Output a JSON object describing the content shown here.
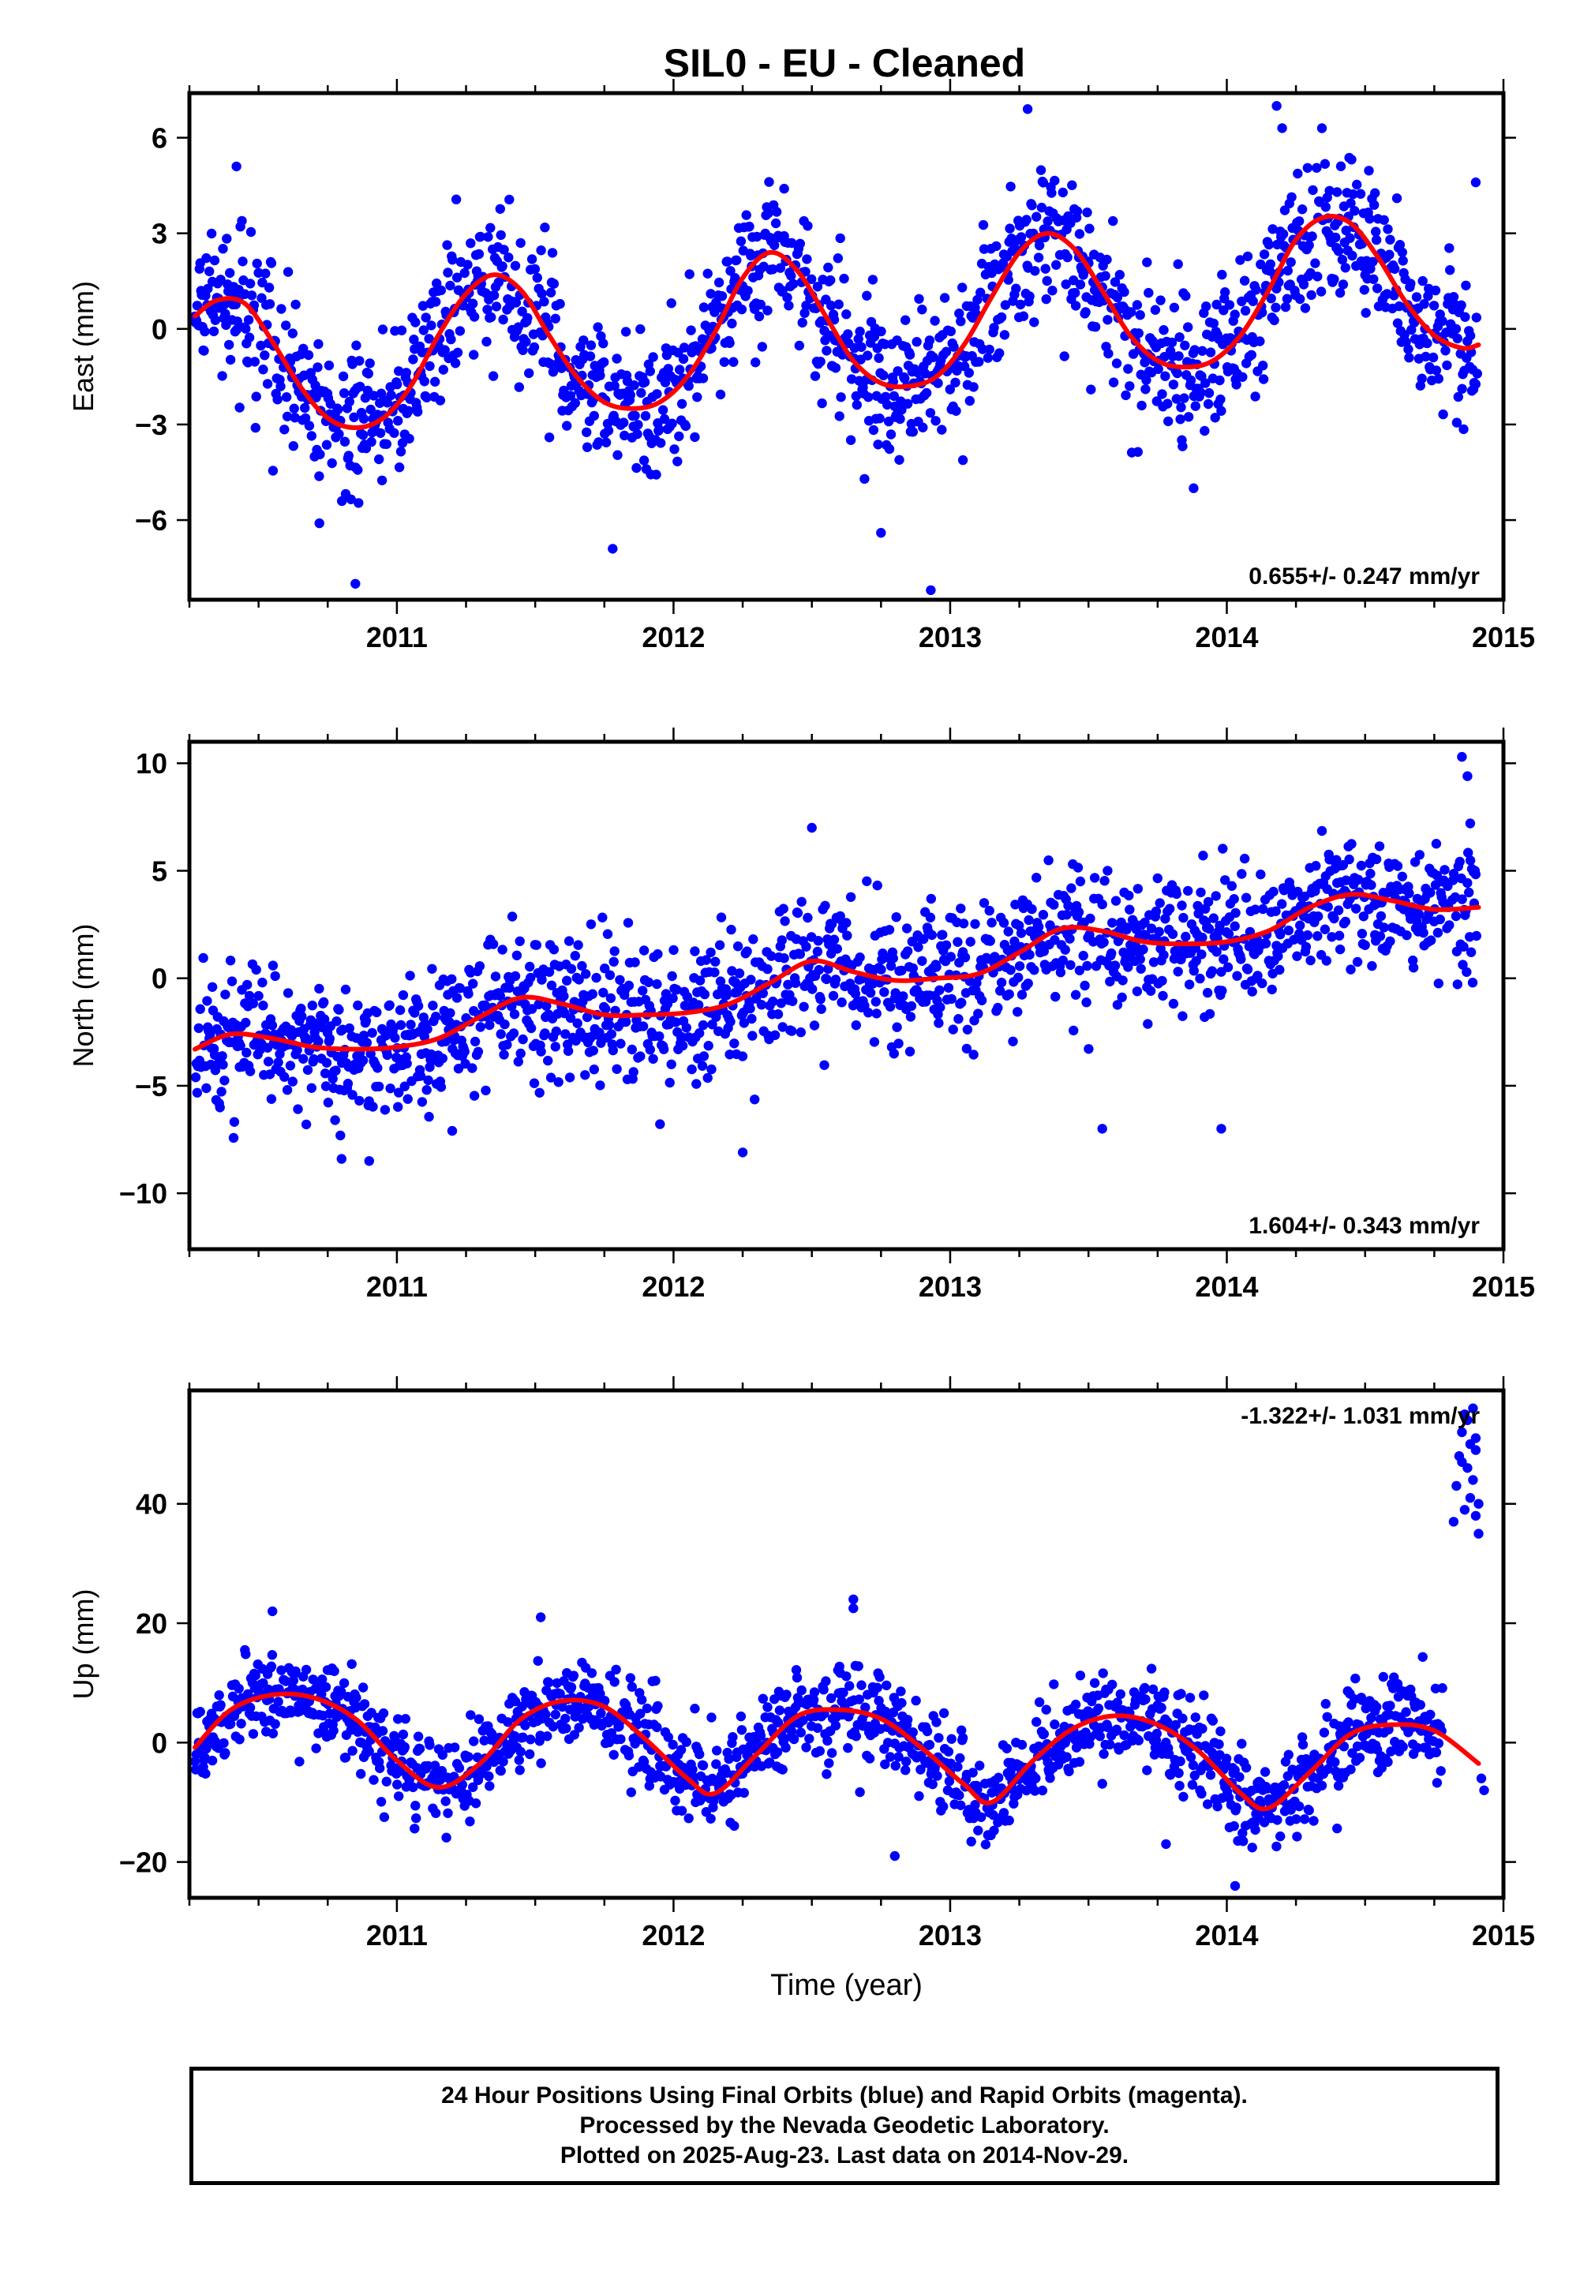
{
  "page": {
    "title": "SIL0  - EU - Cleaned",
    "footer": [
      "24 Hour Positions Using Final Orbits (blue) and Rapid Orbits (magenta).",
      "Processed by the Nevada Geodetic Laboratory.",
      "Plotted on 2025-Aug-23. Last data on 2014-Nov-29."
    ]
  },
  "colors": {
    "points": "#0000ff",
    "fit": "#ff0000",
    "frame": "#000000"
  },
  "chart_data": [
    {
      "type": "scatter",
      "title": "SIL0  - EU - Cleaned",
      "ylabel": "East (mm)",
      "xlabel": "",
      "xlim": [
        2010.25,
        2015.0
      ],
      "ylim": [
        -8.5,
        7.4
      ],
      "xticks": [
        2011,
        2012,
        2013,
        2014,
        2015
      ],
      "yticks": [
        -6,
        -3,
        0,
        3,
        6
      ],
      "ytick_labels": [
        "−6",
        "−3",
        "0",
        "3",
        "6"
      ],
      "rate_label": "0.655+/- 0.247 mm/yr",
      "rate_position": "bottom-right",
      "x_range": [
        2010.27,
        2014.91
      ],
      "seasonal": {
        "trend": 0.655,
        "amplitude": 2.5,
        "peak": 0.37
      },
      "noise": 1.15,
      "fit_line": {
        "x": [
          2010.27,
          2010.35,
          2010.45,
          2010.55,
          2010.65,
          2010.75,
          2010.85,
          2010.95,
          2011.05,
          2011.15,
          2011.25,
          2011.35,
          2011.45,
          2011.55,
          2011.65,
          2011.75,
          2011.85,
          2011.95,
          2012.05,
          2012.15,
          2012.25,
          2012.35,
          2012.45,
          2012.55,
          2012.65,
          2012.75,
          2012.85,
          2012.95,
          2013.05,
          2013.15,
          2013.25,
          2013.35,
          2013.45,
          2013.55,
          2013.65,
          2013.75,
          2013.85,
          2013.95,
          2014.05,
          2014.15,
          2014.25,
          2014.35,
          2014.45,
          2014.55,
          2014.65,
          2014.75,
          2014.85,
          2014.91
        ],
        "y": [
          0.4,
          0.9,
          0.8,
          -0.4,
          -1.8,
          -2.8,
          -3.1,
          -2.8,
          -1.8,
          -0.2,
          1.1,
          1.7,
          1.2,
          -0.2,
          -1.5,
          -2.3,
          -2.5,
          -2.3,
          -1.5,
          -0.1,
          1.6,
          2.4,
          1.8,
          0.4,
          -1.0,
          -1.7,
          -1.8,
          -1.5,
          -0.5,
          1.0,
          2.4,
          3.0,
          2.5,
          1.2,
          -0.2,
          -1.0,
          -1.2,
          -1.0,
          -0.2,
          1.2,
          2.8,
          3.5,
          3.3,
          2.2,
          0.8,
          -0.2,
          -0.6,
          -0.5
        ]
      },
      "outliers": {
        "x": [
          2010.42,
          2012.4,
          2013.28,
          2014.18,
          2014.2,
          2010.72,
          2010.85,
          2011.78,
          2012.75,
          2012.93,
          2013.88,
          2014.9
        ],
        "y": [
          5.1,
          4.4,
          6.9,
          7.0,
          6.3,
          -6.1,
          -8.0,
          -6.9,
          -6.4,
          -8.2,
          -5.0,
          4.6
        ]
      }
    },
    {
      "type": "scatter",
      "ylabel": "North (mm)",
      "xlabel": "",
      "xlim": [
        2010.25,
        2015.0
      ],
      "ylim": [
        -12.6,
        11.0
      ],
      "xticks": [
        2011,
        2012,
        2013,
        2014,
        2015
      ],
      "yticks": [
        -10,
        -5,
        0,
        5,
        10
      ],
      "ytick_labels": [
        "−10",
        "−5",
        "0",
        "5",
        "10"
      ],
      "rate_label": "1.604+/- 0.343 mm/yr",
      "rate_position": "bottom-right",
      "x_range": [
        2010.27,
        2014.91
      ],
      "seasonal": {
        "trend": 1.604,
        "amplitude": 0.6,
        "peak": 0.45
      },
      "noise": 1.6,
      "fit_line": {
        "x": [
          2010.27,
          2010.4,
          2010.55,
          2010.7,
          2010.85,
          2011.0,
          2011.15,
          2011.3,
          2011.45,
          2011.6,
          2011.75,
          2011.9,
          2012.05,
          2012.2,
          2012.35,
          2012.5,
          2012.65,
          2012.8,
          2012.95,
          2013.1,
          2013.25,
          2013.4,
          2013.55,
          2013.7,
          2013.85,
          2014.0,
          2014.15,
          2014.3,
          2014.45,
          2014.6,
          2014.75,
          2014.91
        ],
        "y": [
          -3.3,
          -2.6,
          -2.8,
          -3.2,
          -3.3,
          -3.2,
          -2.8,
          -1.8,
          -0.9,
          -1.2,
          -1.7,
          -1.7,
          -1.6,
          -1.2,
          -0.2,
          0.8,
          0.3,
          -0.1,
          0.0,
          0.2,
          1.2,
          2.3,
          2.2,
          1.7,
          1.6,
          1.7,
          2.2,
          3.3,
          3.9,
          3.6,
          3.2,
          3.3
        ]
      },
      "outliers": {
        "x": [
          2014.85,
          2014.87,
          2014.88,
          2013.55,
          2013.98,
          2012.25,
          2010.8,
          2010.9,
          2012.5,
          2011.2
        ],
        "y": [
          10.3,
          9.4,
          7.2,
          -7.0,
          -7.0,
          -8.1,
          -8.4,
          -8.5,
          7.0,
          -7.1
        ]
      }
    },
    {
      "type": "scatter",
      "ylabel": "Up (mm)",
      "xlabel": "Time (year)",
      "xlim": [
        2010.25,
        2015.0
      ],
      "ylim": [
        -26.0,
        59.0
      ],
      "xticks": [
        2011,
        2012,
        2013,
        2014,
        2015
      ],
      "yticks": [
        -20,
        0,
        20,
        40
      ],
      "ytick_labels": [
        "−20",
        "0",
        "20",
        "40"
      ],
      "rate_label": "-1.322+/- 1.031 mm/yr",
      "rate_position": "top-right",
      "x_range": [
        2010.27,
        2014.78
      ],
      "seasonal": {
        "trend": -1.322,
        "amplitude": 8.0,
        "peak": 0.6
      },
      "noise": 3.8,
      "fit_line": {
        "x": [
          2010.27,
          2010.4,
          2010.55,
          2010.7,
          2010.85,
          2011.0,
          2011.15,
          2011.3,
          2011.45,
          2011.6,
          2011.75,
          2011.9,
          2012.05,
          2012.15,
          2012.3,
          2012.45,
          2012.6,
          2012.75,
          2012.9,
          2013.05,
          2013.15,
          2013.3,
          2013.45,
          2013.6,
          2013.75,
          2013.9,
          2014.05,
          2014.15,
          2014.3,
          2014.45,
          2014.6,
          2014.75,
          2014.91
        ],
        "y": [
          -0.8,
          5.5,
          8.0,
          7.5,
          4.0,
          -3.0,
          -7.5,
          -3.5,
          4.0,
          7.0,
          6.0,
          0.5,
          -6.0,
          -8.5,
          -2.0,
          4.5,
          5.5,
          4.0,
          -1.0,
          -7.0,
          -10.0,
          -3.0,
          2.5,
          4.5,
          3.0,
          -1.5,
          -8.5,
          -11.0,
          -5.0,
          1.5,
          3.0,
          2.0,
          -3.5
        ]
      },
      "cluster": {
        "x": [
          2014.82,
          2014.83,
          2014.84,
          2014.85,
          2014.86,
          2014.86,
          2014.87,
          2014.87,
          2014.88,
          2014.88,
          2014.89,
          2014.89,
          2014.9,
          2014.9,
          2014.91,
          2014.91,
          2014.85,
          2014.9
        ],
        "y": [
          37,
          43,
          48,
          52,
          55,
          39,
          46,
          54,
          41,
          50,
          56,
          44,
          38,
          51,
          40,
          35,
          47,
          49
        ]
      },
      "outliers": {
        "x": [
          2010.55,
          2011.52,
          2012.65,
          2012.65,
          2014.03,
          2014.92,
          2014.93,
          2012.8,
          2013.78
        ],
        "y": [
          22.0,
          21.0,
          24.0,
          22.5,
          -24.0,
          -6.0,
          -8.0,
          -19.0,
          -17.0
        ]
      }
    }
  ]
}
